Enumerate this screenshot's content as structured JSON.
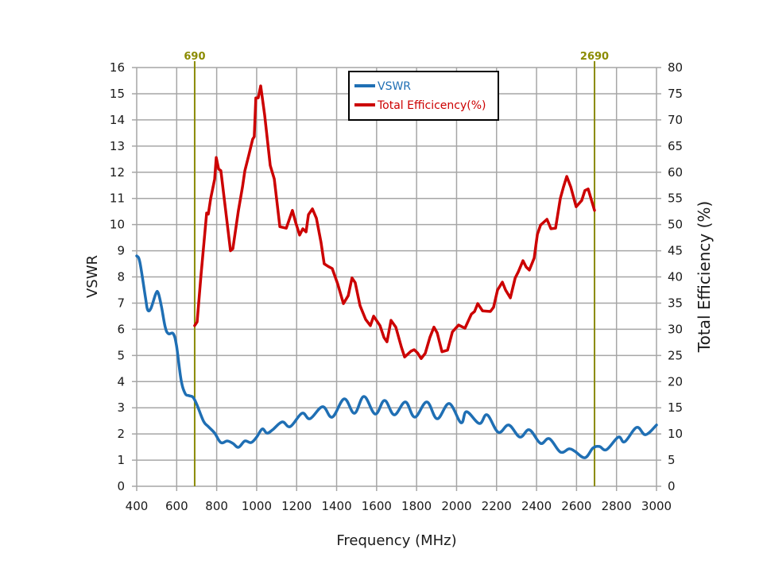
{
  "chart_data": {
    "type": "line",
    "title": "",
    "xlabel": "Frequency (MHz)",
    "ylabel": "VSWR",
    "y2label": "Total Efficiency (%)",
    "xlim": [
      400,
      3000
    ],
    "ylim": [
      0,
      16
    ],
    "y2lim": [
      0,
      80
    ],
    "grid": true,
    "x_ticks": [
      "400",
      "600",
      "800",
      "1000",
      "1200",
      "1400",
      "1600",
      "1800",
      "2000",
      "2200",
      "2400",
      "2600",
      "2800",
      "3000"
    ],
    "y_ticks": [
      "0",
      "1",
      "2",
      "3",
      "4",
      "5",
      "6",
      "7",
      "8",
      "9",
      "10",
      "11",
      "12",
      "13",
      "14",
      "15",
      "16"
    ],
    "y2_ticks": [
      "0",
      "5",
      "10",
      "15",
      "20",
      "25",
      "30",
      "35",
      "40",
      "45",
      "50",
      "55",
      "60",
      "65",
      "70",
      "75",
      "80"
    ],
    "legend": {
      "placement": "top-center",
      "entries": [
        {
          "name": "VSWR",
          "color": "#1f6fb4"
        },
        {
          "name": "Total Efficicency(%)",
          "color": "#cc0000"
        }
      ]
    },
    "markers": [
      {
        "label": "690",
        "x": 690,
        "color": "#8b8b00"
      },
      {
        "label": "2690",
        "x": 2690,
        "color": "#8b8b00"
      }
    ],
    "series": [
      {
        "name": "VSWR",
        "axis": "left",
        "color": "#1f6fb4",
        "x": [
          400,
          416,
          444,
          455,
          471,
          495,
          507,
          523,
          543,
          559,
          583,
          599,
          622,
          642,
          662,
          682,
          702,
          734,
          758,
          790,
          821,
          853,
          881,
          909,
          941,
          972,
          1000,
          1028,
          1052,
          1080,
          1128,
          1168,
          1227,
          1267,
          1330,
          1378,
          1438,
          1489,
          1537,
          1593,
          1640,
          1688,
          1744,
          1791,
          1851,
          1903,
          1963,
          2022,
          2050,
          2114,
          2153,
          2209,
          2261,
          2317,
          2364,
          2420,
          2464,
          2519,
          2563,
          2591,
          2642,
          2682,
          2714,
          2750,
          2809,
          2841,
          2901,
          2945,
          3000
        ],
        "y": [
          8.8,
          8.56,
          7.2,
          6.74,
          6.8,
          7.35,
          7.4,
          6.9,
          6.07,
          5.83,
          5.83,
          5.37,
          4.07,
          3.55,
          3.46,
          3.4,
          3.1,
          2.49,
          2.28,
          2.03,
          1.67,
          1.73,
          1.64,
          1.49,
          1.73,
          1.67,
          1.88,
          2.19,
          2.03,
          2.16,
          2.46,
          2.28,
          2.79,
          2.58,
          3.04,
          2.64,
          3.34,
          2.79,
          3.43,
          2.76,
          3.28,
          2.73,
          3.22,
          2.64,
          3.22,
          2.58,
          3.16,
          2.43,
          2.85,
          2.4,
          2.73,
          2.06,
          2.34,
          1.88,
          2.16,
          1.64,
          1.82,
          1.31,
          1.43,
          1.34,
          1.09,
          1.46,
          1.52,
          1.4,
          1.88,
          1.7,
          2.25,
          1.97,
          2.34
        ]
      },
      {
        "name": "Total Efficicency(%)",
        "axis": "right",
        "color": "#cc0000",
        "x": [
          690,
          702,
          722,
          750,
          758,
          770,
          790,
          798,
          810,
          821,
          869,
          881,
          909,
          929,
          941,
          961,
          980,
          988,
          996,
          1008,
          1020,
          1040,
          1068,
          1088,
          1116,
          1148,
          1179,
          1195,
          1215,
          1231,
          1247,
          1259,
          1279,
          1299,
          1322,
          1338,
          1358,
          1378,
          1406,
          1434,
          1458,
          1477,
          1493,
          1517,
          1545,
          1569,
          1585,
          1617,
          1637,
          1652,
          1672,
          1696,
          1724,
          1740,
          1772,
          1788,
          1804,
          1823,
          1843,
          1867,
          1887,
          1903,
          1927,
          1955,
          1979,
          2010,
          2042,
          2074,
          2090,
          2106,
          2130,
          2169,
          2185,
          2205,
          2229,
          2245,
          2269,
          2293,
          2309,
          2332,
          2348,
          2364,
          2388,
          2404,
          2420,
          2452,
          2472,
          2495,
          2519,
          2535,
          2551,
          2571,
          2598,
          2626,
          2642,
          2658,
          2690
        ],
        "y": [
          30.7,
          31.4,
          40.5,
          52.2,
          52,
          55,
          58.7,
          62.8,
          60.6,
          60.3,
          45,
          45.4,
          52.7,
          57.2,
          60.3,
          63.3,
          66.3,
          66.8,
          74.2,
          74.2,
          76.5,
          70.9,
          61.3,
          58.7,
          49.6,
          49.3,
          52.7,
          50.4,
          48,
          49.2,
          48.6,
          51.9,
          53,
          51.2,
          46.6,
          42.5,
          42,
          41.6,
          38.6,
          34.9,
          36.4,
          39.8,
          38.9,
          34.5,
          31.9,
          30.7,
          32.5,
          30.7,
          28.4,
          27.6,
          31.7,
          30.4,
          26.6,
          24.7,
          25.8,
          26.1,
          25.5,
          24.4,
          25.4,
          28.5,
          30.4,
          29.3,
          25.7,
          26,
          29.5,
          30.8,
          30.2,
          32.9,
          33.4,
          34.9,
          33.5,
          33.4,
          34.2,
          37.5,
          39,
          37.5,
          36,
          39.8,
          41,
          43.1,
          41.9,
          41.3,
          43.6,
          48.1,
          49.9,
          51,
          49.2,
          49.3,
          55,
          57.2,
          59.2,
          57.2,
          53.4,
          54.6,
          56.5,
          56.8,
          52.7
        ]
      }
    ]
  }
}
